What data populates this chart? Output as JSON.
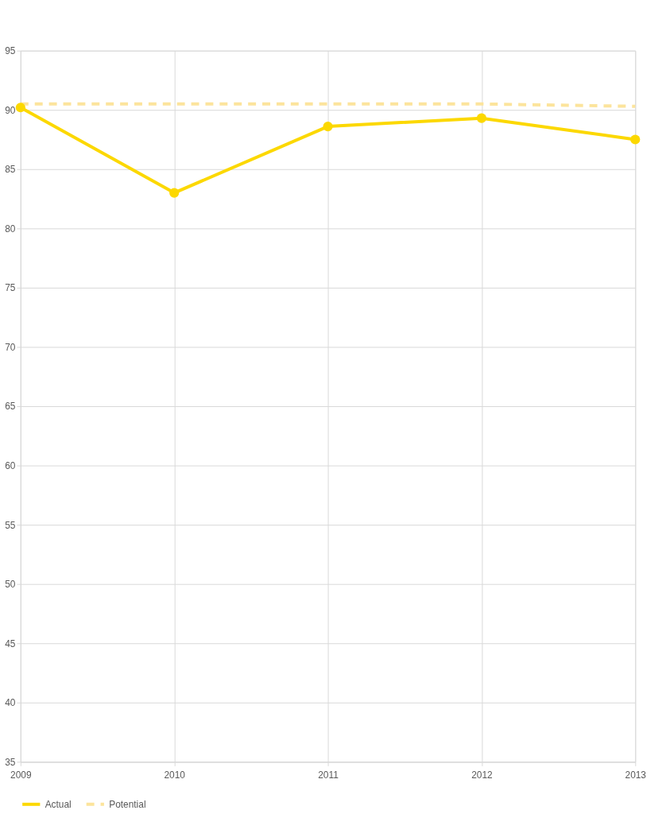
{
  "chart_data": {
    "type": "line",
    "categories": [
      "2009",
      "2010",
      "2011",
      "2012",
      "2013"
    ],
    "series": [
      {
        "name": "Actual",
        "color": "#fcd800",
        "values": [
          90.2,
          83.0,
          88.6,
          89.3,
          87.5
        ],
        "marker": "circle",
        "line_style": "solid"
      },
      {
        "name": "Potential",
        "color": "#fce49c",
        "values": [
          90.5,
          90.5,
          90.5,
          90.5,
          90.3
        ],
        "marker": "none",
        "line_style": "dashed"
      }
    ],
    "ylim": [
      35,
      95
    ],
    "yticks": [
      35,
      40,
      45,
      50,
      55,
      60,
      65,
      70,
      75,
      80,
      85,
      90,
      95
    ],
    "grid": true,
    "legend": "bottom"
  }
}
